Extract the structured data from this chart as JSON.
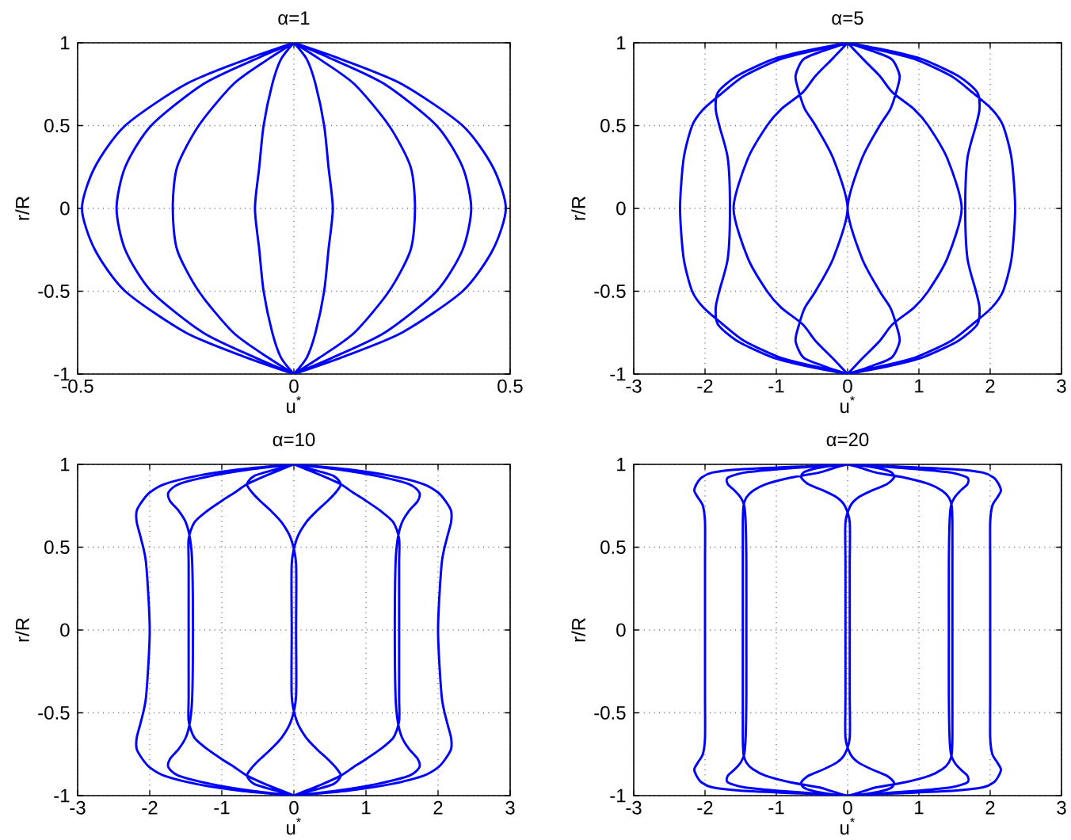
{
  "chart_data": [
    {
      "type": "line",
      "title": "α=1",
      "xlabel": "u$^{*}$",
      "ylabel": "r/R",
      "xlim": [
        -0.5,
        0.5
      ],
      "xticks": [
        -0.5,
        0,
        0.5
      ],
      "ylim": [
        -1,
        1
      ],
      "yticks": [
        -1,
        -0.5,
        0,
        0.5,
        1
      ],
      "grid": true,
      "series": [
        {
          "color": "#0000ff",
          "x": [
            0,
            -0.11,
            -0.25,
            -0.39,
            -0.46,
            -0.49,
            -0.46,
            -0.39,
            -0.25,
            -0.11,
            0,
            null,
            0,
            -0.09,
            -0.21,
            -0.33,
            -0.39,
            -0.41,
            -0.39,
            -0.33,
            -0.21,
            -0.09,
            0,
            null,
            0,
            -0.06,
            -0.14,
            -0.22,
            -0.27,
            -0.28,
            -0.27,
            -0.22,
            -0.14,
            -0.06,
            0,
            null,
            0,
            -0.03,
            -0.05,
            -0.07,
            -0.08,
            -0.09,
            -0.08,
            -0.07,
            -0.05,
            -0.03,
            0,
            null,
            0,
            0.03,
            0.05,
            0.07,
            0.08,
            0.09,
            0.08,
            0.07,
            0.05,
            0.03,
            0,
            null,
            0,
            0.06,
            0.14,
            0.22,
            0.27,
            0.28,
            0.27,
            0.22,
            0.14,
            0.06,
            0,
            null,
            0,
            0.09,
            0.21,
            0.33,
            0.39,
            0.41,
            0.39,
            0.33,
            0.21,
            0.09,
            0,
            null,
            0,
            0.11,
            0.25,
            0.39,
            0.46,
            0.49,
            0.46,
            0.39,
            0.25,
            0.11,
            0
          ],
          "values": [
            1,
            0.9,
            0.75,
            0.5,
            0.25,
            0,
            -0.25,
            -0.5,
            -0.75,
            -0.9,
            -1,
            null,
            1,
            0.9,
            0.75,
            0.5,
            0.25,
            0,
            -0.25,
            -0.5,
            -0.75,
            -0.9,
            -1,
            null,
            1,
            0.9,
            0.75,
            0.5,
            0.25,
            0,
            -0.25,
            -0.5,
            -0.75,
            -0.9,
            -1,
            null,
            1,
            0.9,
            0.75,
            0.5,
            0.25,
            0,
            -0.25,
            -0.5,
            -0.75,
            -0.9,
            -1,
            null,
            1,
            0.9,
            0.75,
            0.5,
            0.25,
            0,
            -0.25,
            -0.5,
            -0.75,
            -0.9,
            -1,
            null,
            1,
            0.9,
            0.75,
            0.5,
            0.25,
            0,
            -0.25,
            -0.5,
            -0.75,
            -0.9,
            -1,
            null,
            1,
            0.9,
            0.75,
            0.5,
            0.25,
            0,
            -0.25,
            -0.5,
            -0.75,
            -0.9,
            -1,
            null,
            1,
            0.9,
            0.75,
            0.5,
            0.25,
            0,
            -0.25,
            -0.5,
            -0.75,
            -0.9,
            -1
          ]
        }
      ]
    },
    {
      "type": "line",
      "title": "α=5",
      "xlabel": "u$^{*}$",
      "ylabel": "r/R",
      "xlim": [
        -3,
        3
      ],
      "xticks": [
        -3,
        -2,
        -1,
        0,
        1,
        2,
        3
      ],
      "ylim": [
        -1,
        1
      ],
      "yticks": [
        -1,
        -0.5,
        0,
        0.5,
        1
      ],
      "grid": true,
      "series": [
        {
          "color": "#0000ff",
          "x": [
            0,
            -0.5,
            -0.95,
            -1.45,
            -1.75,
            -2.02,
            -2.18,
            -2.3,
            -2.35,
            -2.3,
            -2.18,
            -2.02,
            -1.75,
            -1.45,
            -0.95,
            -0.5,
            0,
            null,
            0,
            -0.6,
            -1.05,
            -1.55,
            -1.82,
            -1.85,
            -1.8,
            -1.68,
            -1.65,
            -1.68,
            -1.8,
            -1.85,
            -1.82,
            -1.55,
            -1.05,
            -0.6,
            0,
            null,
            0,
            -0.11,
            -0.22,
            -0.45,
            -0.63,
            -0.93,
            -1.13,
            -1.4,
            -1.6,
            -1.4,
            -1.13,
            -0.93,
            -0.63,
            -0.45,
            -0.22,
            -0.11,
            0,
            null,
            0,
            -0.35,
            -0.62,
            -0.73,
            -0.68,
            -0.6,
            -0.45,
            -0.2,
            0,
            -0.2,
            -0.45,
            -0.6,
            -0.68,
            -0.73,
            -0.62,
            -0.35,
            0,
            null,
            0,
            0.35,
            0.62,
            0.73,
            0.68,
            0.6,
            0.45,
            0.2,
            0,
            0.2,
            0.45,
            0.6,
            0.68,
            0.73,
            0.62,
            0.35,
            0,
            null,
            0,
            0.11,
            0.22,
            0.45,
            0.63,
            0.93,
            1.13,
            1.4,
            1.6,
            1.4,
            1.13,
            0.93,
            0.63,
            0.45,
            0.22,
            0.11,
            0,
            null,
            0,
            0.6,
            1.05,
            1.55,
            1.82,
            1.85,
            1.8,
            1.68,
            1.65,
            1.68,
            1.8,
            1.85,
            1.82,
            1.55,
            1.05,
            0.6,
            0,
            null,
            0,
            0.5,
            0.95,
            1.45,
            1.75,
            2.02,
            2.18,
            2.3,
            2.35,
            2.3,
            2.18,
            2.02,
            1.75,
            1.45,
            0.95,
            0.5,
            0
          ],
          "values": [
            1,
            0.95,
            0.9,
            0.8,
            0.7,
            0.6,
            0.5,
            0.3,
            0,
            -0.3,
            -0.5,
            -0.6,
            -0.7,
            -0.8,
            -0.9,
            -0.95,
            -1,
            null,
            1,
            0.95,
            0.9,
            0.8,
            0.7,
            0.6,
            0.5,
            0.3,
            0,
            -0.3,
            -0.5,
            -0.6,
            -0.7,
            -0.8,
            -0.9,
            -0.95,
            -1,
            null,
            1,
            0.95,
            0.9,
            0.8,
            0.7,
            0.6,
            0.5,
            0.3,
            0,
            -0.3,
            -0.5,
            -0.6,
            -0.7,
            -0.8,
            -0.9,
            -0.95,
            -1,
            null,
            1,
            0.95,
            0.9,
            0.8,
            0.7,
            0.6,
            0.5,
            0.3,
            0,
            -0.3,
            -0.5,
            -0.6,
            -0.7,
            -0.8,
            -0.9,
            -0.95,
            -1,
            null,
            1,
            0.95,
            0.9,
            0.8,
            0.7,
            0.6,
            0.5,
            0.3,
            0,
            -0.3,
            -0.5,
            -0.6,
            -0.7,
            -0.8,
            -0.9,
            -0.95,
            -1,
            null,
            1,
            0.95,
            0.9,
            0.8,
            0.7,
            0.6,
            0.5,
            0.3,
            0,
            -0.3,
            -0.5,
            -0.6,
            -0.7,
            -0.8,
            -0.9,
            -0.95,
            -1,
            null,
            1,
            0.95,
            0.9,
            0.8,
            0.7,
            0.6,
            0.5,
            0.3,
            0,
            -0.3,
            -0.5,
            -0.6,
            -0.7,
            -0.8,
            -0.9,
            -0.95,
            -1,
            null,
            1,
            0.95,
            0.9,
            0.8,
            0.7,
            0.6,
            0.5,
            0.3,
            0,
            -0.3,
            -0.5,
            -0.6,
            -0.7,
            -0.8,
            -0.9,
            -0.95,
            -1
          ]
        }
      ]
    },
    {
      "type": "line",
      "title": "α=10",
      "xlabel": "u$^{*}$",
      "ylabel": "r/R",
      "xlim": [
        -3,
        3
      ],
      "xticks": [
        -3,
        -2,
        -1,
        0,
        1,
        2,
        3
      ],
      "ylim": [
        -1,
        1
      ],
      "yticks": [
        -1,
        -0.5,
        0,
        0.5,
        1
      ],
      "grid": true,
      "series": [
        {
          "color": "#0000ff",
          "x": [
            0,
            -0.75,
            -1.35,
            -1.8,
            -2.0,
            -2.1,
            -2.18,
            -2.18,
            -2.12,
            -2.05,
            -2.0,
            -2.05,
            -2.12,
            -2.18,
            -2.18,
            -2.1,
            -2.0,
            -1.8,
            -1.35,
            -0.75,
            0,
            null,
            0,
            -0.6,
            -1.15,
            -1.6,
            -1.74,
            -1.72,
            -1.6,
            -1.5,
            -1.44,
            -1.41,
            -1.4,
            -1.41,
            -1.44,
            -1.5,
            -1.6,
            -1.72,
            -1.74,
            -1.6,
            -1.15,
            -0.6,
            0,
            null,
            0,
            -0.17,
            -0.4,
            -0.65,
            -0.82,
            -1.0,
            -1.2,
            -1.38,
            -1.46,
            -1.46,
            -1.46,
            -1.46,
            -1.46,
            -1.38,
            -1.2,
            -1.0,
            -0.82,
            -0.65,
            -0.4,
            -0.17,
            0,
            null,
            0,
            -0.25,
            -0.55,
            -0.65,
            -0.58,
            -0.47,
            -0.32,
            -0.17,
            -0.04,
            0.03,
            0.03,
            0.03,
            -0.04,
            -0.17,
            -0.32,
            -0.47,
            -0.58,
            -0.65,
            -0.55,
            -0.25,
            0,
            null,
            0,
            0.25,
            0.55,
            0.65,
            0.58,
            0.47,
            0.32,
            0.17,
            0.04,
            -0.03,
            -0.03,
            -0.03,
            0.04,
            0.17,
            0.32,
            0.47,
            0.58,
            0.65,
            0.55,
            0.25,
            0,
            null,
            0,
            0.17,
            0.4,
            0.65,
            0.82,
            1.0,
            1.2,
            1.38,
            1.46,
            1.46,
            1.46,
            1.46,
            1.46,
            1.38,
            1.2,
            1.0,
            0.82,
            0.65,
            0.4,
            0.17,
            0,
            null,
            0,
            0.6,
            1.15,
            1.6,
            1.74,
            1.72,
            1.6,
            1.5,
            1.44,
            1.41,
            1.4,
            1.41,
            1.44,
            1.5,
            1.6,
            1.72,
            1.74,
            1.6,
            1.15,
            0.6,
            0,
            null,
            0,
            0.75,
            1.35,
            1.8,
            2.0,
            2.1,
            2.18,
            2.18,
            2.12,
            2.05,
            2.0,
            2.05,
            2.12,
            2.18,
            2.18,
            2.1,
            2.0,
            1.8,
            1.35,
            0.75,
            0
          ],
          "values": [
            1,
            0.97,
            0.93,
            0.88,
            0.83,
            0.78,
            0.72,
            0.65,
            0.55,
            0.4,
            0,
            -0.4,
            -0.55,
            -0.65,
            -0.72,
            -0.78,
            -0.83,
            -0.88,
            -0.93,
            -0.97,
            -1,
            null,
            1,
            0.97,
            0.93,
            0.88,
            0.83,
            0.78,
            0.72,
            0.65,
            0.55,
            0.4,
            0,
            -0.4,
            -0.55,
            -0.65,
            -0.72,
            -0.78,
            -0.83,
            -0.88,
            -0.93,
            -0.97,
            -1,
            null,
            1,
            0.97,
            0.93,
            0.88,
            0.83,
            0.78,
            0.72,
            0.65,
            0.55,
            0.4,
            0,
            -0.4,
            -0.55,
            -0.65,
            -0.72,
            -0.78,
            -0.83,
            -0.88,
            -0.93,
            -0.97,
            -1,
            null,
            1,
            0.97,
            0.93,
            0.88,
            0.83,
            0.78,
            0.72,
            0.65,
            0.55,
            0.4,
            0,
            -0.4,
            -0.55,
            -0.65,
            -0.72,
            -0.78,
            -0.83,
            -0.88,
            -0.93,
            -0.97,
            -1,
            null,
            1,
            0.97,
            0.93,
            0.88,
            0.83,
            0.78,
            0.72,
            0.65,
            0.55,
            0.4,
            0,
            -0.4,
            -0.55,
            -0.65,
            -0.72,
            -0.78,
            -0.83,
            -0.88,
            -0.93,
            -0.97,
            -1,
            null,
            1,
            0.97,
            0.93,
            0.88,
            0.83,
            0.78,
            0.72,
            0.65,
            0.55,
            0.4,
            0,
            -0.4,
            -0.55,
            -0.65,
            -0.72,
            -0.78,
            -0.83,
            -0.88,
            -0.93,
            -0.97,
            -1,
            null,
            1,
            0.97,
            0.93,
            0.88,
            0.83,
            0.78,
            0.72,
            0.65,
            0.55,
            0.4,
            0,
            -0.4,
            -0.55,
            -0.65,
            -0.72,
            -0.78,
            -0.83,
            -0.88,
            -0.93,
            -0.97,
            -1,
            null,
            1,
            0.97,
            0.93,
            0.88,
            0.83,
            0.78,
            0.72,
            0.65,
            0.55,
            0.4,
            0,
            -0.4,
            -0.55,
            -0.65,
            -0.72,
            -0.78,
            -0.83,
            -0.88,
            -0.93,
            -0.97,
            -1
          ]
        }
      ]
    },
    {
      "type": "line",
      "title": "α=20",
      "xlabel": "u$^{*}$",
      "ylabel": "r/R",
      "xlim": [
        -3,
        3
      ],
      "xticks": [
        -3,
        -2,
        -1,
        0,
        1,
        2,
        3
      ],
      "ylim": [
        -1,
        1
      ],
      "yticks": [
        -1,
        -0.5,
        0,
        0.5,
        1
      ],
      "grid": true,
      "series": [
        {
          "color": "#0000ff",
          "x": [
            0,
            -0.5,
            -1.5,
            -1.9,
            -2.05,
            -2.12,
            -2.15,
            -2.1,
            -2.03,
            -2.0,
            -2.0,
            -2.0,
            -2.0,
            -2.0,
            -2.03,
            -2.1,
            -2.15,
            -2.12,
            -2.05,
            -1.9,
            -1.5,
            -0.5,
            0,
            null,
            0,
            -0.35,
            -1.0,
            -1.45,
            -1.68,
            -1.68,
            -1.58,
            -1.5,
            -1.45,
            -1.43,
            -1.42,
            -1.42,
            -1.42,
            -1.43,
            -1.45,
            -1.5,
            -1.58,
            -1.68,
            -1.68,
            -1.45,
            -1.0,
            -0.35,
            0,
            null,
            0,
            -0.1,
            -0.25,
            -0.4,
            -0.8,
            -1.15,
            -1.33,
            -1.42,
            -1.46,
            -1.47,
            -1.47,
            -1.47,
            -1.47,
            -1.47,
            -1.46,
            -1.42,
            -1.33,
            -1.15,
            -0.8,
            -0.4,
            -0.25,
            -0.1,
            0,
            null,
            0,
            -0.25,
            -0.5,
            -0.62,
            -0.65,
            -0.55,
            -0.33,
            -0.15,
            -0.04,
            0.03,
            0.03,
            0.03,
            0.03,
            0.03,
            -0.04,
            -0.15,
            -0.33,
            -0.55,
            -0.65,
            -0.62,
            -0.5,
            -0.25,
            0,
            null,
            0,
            0.25,
            0.5,
            0.62,
            0.65,
            0.55,
            0.33,
            0.15,
            0.04,
            -0.03,
            -0.03,
            -0.03,
            -0.03,
            -0.03,
            0.04,
            0.15,
            0.33,
            0.55,
            0.65,
            0.62,
            0.5,
            0.25,
            0,
            null,
            0,
            0.1,
            0.25,
            0.4,
            0.8,
            1.15,
            1.33,
            1.42,
            1.46,
            1.47,
            1.47,
            1.47,
            1.47,
            1.47,
            1.46,
            1.42,
            1.33,
            1.15,
            0.8,
            0.4,
            0.25,
            0.1,
            0,
            null,
            0,
            0.35,
            1.0,
            1.45,
            1.68,
            1.68,
            1.58,
            1.5,
            1.45,
            1.43,
            1.42,
            1.42,
            1.42,
            1.43,
            1.45,
            1.5,
            1.58,
            1.68,
            1.68,
            1.45,
            1.0,
            0.35,
            0,
            null,
            0,
            0.5,
            1.5,
            1.9,
            2.05,
            2.12,
            2.15,
            2.1,
            2.03,
            2.0,
            2.0,
            2.0,
            2.0,
            2.0,
            2.03,
            2.1,
            2.15,
            2.12,
            2.05,
            1.9,
            1.5,
            0.5,
            0
          ],
          "values": [
            1,
            0.99,
            0.97,
            0.95,
            0.92,
            0.88,
            0.84,
            0.8,
            0.75,
            0.65,
            0.4,
            0,
            -0.4,
            -0.65,
            -0.75,
            -0.8,
            -0.84,
            -0.88,
            -0.92,
            -0.95,
            -0.97,
            -0.99,
            -1,
            null,
            1,
            0.99,
            0.97,
            0.95,
            0.92,
            0.88,
            0.84,
            0.8,
            0.75,
            0.65,
            0.4,
            0,
            -0.4,
            -0.65,
            -0.75,
            -0.8,
            -0.84,
            -0.88,
            -0.92,
            -0.95,
            -0.97,
            -0.99,
            -1,
            null,
            1,
            0.99,
            0.97,
            0.95,
            0.92,
            0.88,
            0.84,
            0.8,
            0.75,
            0.65,
            0.4,
            0,
            -0.4,
            -0.65,
            -0.75,
            -0.8,
            -0.84,
            -0.88,
            -0.92,
            -0.95,
            -0.97,
            -0.99,
            -1,
            null,
            1,
            0.99,
            0.97,
            0.95,
            0.92,
            0.88,
            0.84,
            0.8,
            0.75,
            0.65,
            0.4,
            0,
            -0.4,
            -0.65,
            -0.75,
            -0.8,
            -0.84,
            -0.88,
            -0.92,
            -0.95,
            -0.97,
            -0.99,
            -1,
            null,
            1,
            0.99,
            0.97,
            0.95,
            0.92,
            0.88,
            0.84,
            0.8,
            0.75,
            0.65,
            0.4,
            0,
            -0.4,
            -0.65,
            -0.75,
            -0.8,
            -0.84,
            -0.88,
            -0.92,
            -0.95,
            -0.97,
            -0.99,
            -1,
            null,
            1,
            0.99,
            0.97,
            0.95,
            0.92,
            0.88,
            0.84,
            0.8,
            0.75,
            0.65,
            0.4,
            0,
            -0.4,
            -0.65,
            -0.75,
            -0.8,
            -0.84,
            -0.88,
            -0.92,
            -0.95,
            -0.97,
            -0.99,
            -1,
            null,
            1,
            0.99,
            0.97,
            0.95,
            0.92,
            0.88,
            0.84,
            0.8,
            0.75,
            0.65,
            0.4,
            0,
            -0.4,
            -0.65,
            -0.75,
            -0.8,
            -0.84,
            -0.88,
            -0.92,
            -0.95,
            -0.97,
            -0.99,
            -1,
            null,
            1,
            0.99,
            0.97,
            0.95,
            0.92,
            0.88,
            0.84,
            0.8,
            0.75,
            0.65,
            0.4,
            0,
            -0.4,
            -0.65,
            -0.75,
            -0.8,
            -0.84,
            -0.88,
            -0.92,
            -0.95,
            -0.97,
            -0.99,
            -1
          ]
        }
      ]
    }
  ]
}
